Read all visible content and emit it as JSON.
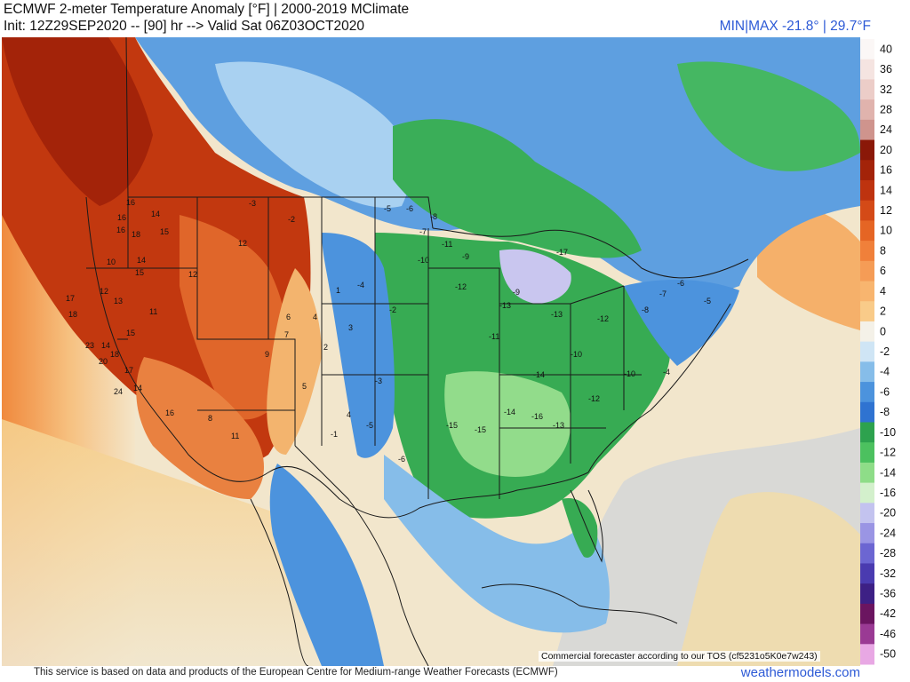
{
  "header": {
    "title": "ECMWF 2-meter Temperature Anomaly [°F] | 2000-2019 MClimate",
    "subtitle": "Init: 12Z29SEP2020 -- [90] hr --> Valid Sat 06Z03OCT2020",
    "minmax": "MIN|MAX -21.8° | 29.7°F"
  },
  "footer": {
    "disclaimer": "This service is based on data and products of the European Centre for Medium-range Weather Forecasts (ECMWF)",
    "brand": "weathermodels.com",
    "tos": "Commercial forecaster according to our TOS (cf5231o5K0e7w243)"
  },
  "colorbar": {
    "labels": [
      "40",
      "36",
      "32",
      "28",
      "24",
      "20",
      "16",
      "14",
      "12",
      "10",
      "8",
      "6",
      "4",
      "2",
      "0",
      "-2",
      "-4",
      "-6",
      "-8",
      "-10",
      "-12",
      "-14",
      "-16",
      "-20",
      "-24",
      "-28",
      "-32",
      "-36",
      "-42",
      "-46",
      "-50"
    ],
    "colors": [
      "#fbf7f6",
      "#f5e4e1",
      "#eccdc8",
      "#e0b3ad",
      "#cf948d",
      "#8a1808",
      "#a32309",
      "#be330f",
      "#d44a17",
      "#e56524",
      "#f0803a",
      "#f59c56",
      "#f8b56f",
      "#f9cb89",
      "#f4f1e8",
      "#cfe5f5",
      "#86bde9",
      "#4c93dd",
      "#2f73d1",
      "#2da24e",
      "#4cc15f",
      "#8edd88",
      "#d3f0cc",
      "#c3c3ef",
      "#9a95e4",
      "#6c66d2",
      "#4a3bb0",
      "#3d2085",
      "#6b1560",
      "#9a3a94",
      "#e8a8e4"
    ]
  },
  "anomaly_labels": [
    {
      "v": "16"
    },
    {
      "v": "14"
    },
    {
      "v": "16"
    },
    {
      "v": "18"
    },
    {
      "v": "15"
    },
    {
      "v": "16"
    },
    {
      "v": "14"
    },
    {
      "v": "15"
    },
    {
      "v": "10"
    },
    {
      "v": "12"
    },
    {
      "v": "17"
    },
    {
      "v": "18"
    },
    {
      "v": "15"
    },
    {
      "v": "13"
    },
    {
      "v": "11"
    },
    {
      "v": "12"
    },
    {
      "v": "23"
    },
    {
      "v": "14"
    },
    {
      "v": "20"
    },
    {
      "v": "18"
    },
    {
      "v": "17"
    },
    {
      "v": "24"
    },
    {
      "v": "14"
    },
    {
      "v": "16"
    },
    {
      "v": "12"
    },
    {
      "v": "7"
    },
    {
      "v": "4"
    },
    {
      "v": "9"
    },
    {
      "v": "8"
    },
    {
      "v": "11"
    },
    {
      "v": "6"
    },
    {
      "v": "5"
    },
    {
      "v": "-3"
    },
    {
      "v": "-2"
    },
    {
      "v": "-5"
    },
    {
      "v": "-4"
    },
    {
      "v": "-6"
    },
    {
      "v": "-7"
    },
    {
      "v": "-8"
    },
    {
      "v": "-10"
    },
    {
      "v": "-11"
    },
    {
      "v": "-9"
    },
    {
      "v": "-12"
    },
    {
      "v": "-13"
    },
    {
      "v": "-14"
    },
    {
      "v": "-15"
    },
    {
      "v": "-16"
    },
    {
      "v": "-17"
    },
    {
      "v": "-12"
    },
    {
      "v": "-10"
    },
    {
      "v": "-8"
    },
    {
      "v": "-7"
    },
    {
      "v": "-6"
    },
    {
      "v": "-5"
    },
    {
      "v": "-3"
    },
    {
      "v": "-2"
    },
    {
      "v": "-13"
    },
    {
      "v": "-11"
    },
    {
      "v": "-9"
    },
    {
      "v": "-14"
    },
    {
      "v": "-15"
    },
    {
      "v": "-13"
    },
    {
      "v": "-12"
    },
    {
      "v": "-10"
    },
    {
      "v": "-6"
    },
    {
      "v": "-4"
    },
    {
      "v": "-5"
    },
    {
      "v": "-1"
    },
    {
      "v": "1"
    },
    {
      "v": "3"
    },
    {
      "v": "2"
    },
    {
      "v": "4"
    }
  ]
}
